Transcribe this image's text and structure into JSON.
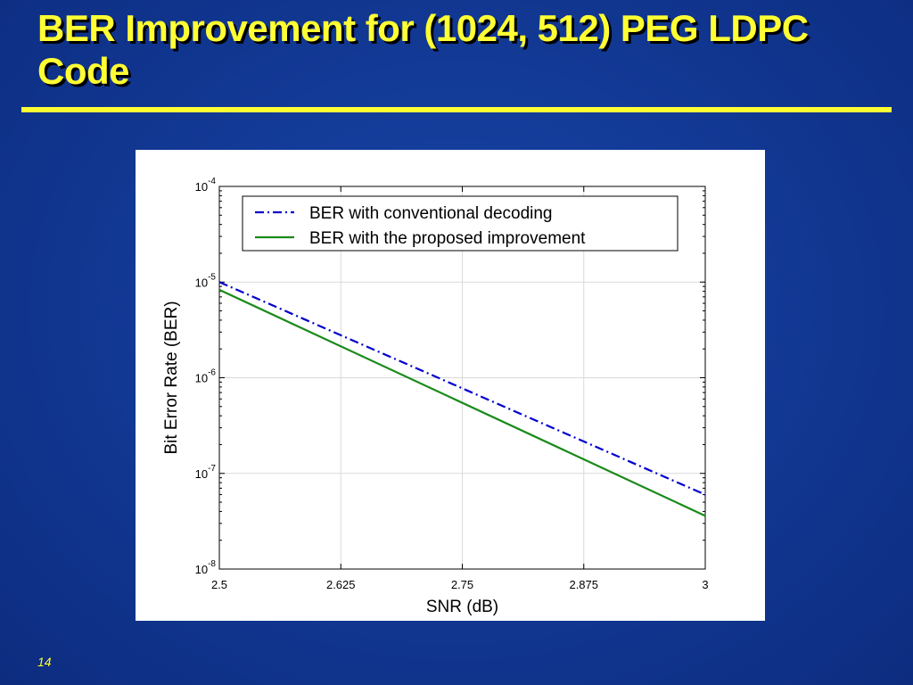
{
  "slide": {
    "title": "BER Improvement for (1024, 512) PEG LDPC Code",
    "number": "14"
  },
  "colors": {
    "background": "#123a96",
    "title": "#ffff33",
    "conventional": "#0000cc",
    "proposed": "#1a8a1a"
  },
  "chart_data": {
    "type": "line",
    "title": "",
    "xlabel": "SNR (dB)",
    "ylabel": "Bit Error Rate (BER)",
    "xlim": [
      2.5,
      3
    ],
    "ylim": [
      1e-08,
      0.0001
    ],
    "yscale": "log",
    "grid": true,
    "legend_position": "top-right",
    "x_ticks": [
      "2.5",
      "2.625",
      "2.75",
      "2.875",
      "3"
    ],
    "y_ticks": [
      {
        "base": "10",
        "exp": "-4"
      },
      {
        "base": "10",
        "exp": "-5"
      },
      {
        "base": "10",
        "exp": "-6"
      },
      {
        "base": "10",
        "exp": "-7"
      },
      {
        "base": "10",
        "exp": "-8"
      }
    ],
    "series": [
      {
        "name": "BER with conventional decoding",
        "style": "dash-dot",
        "color": "#0000cc",
        "x": [
          2.5,
          3
        ],
        "y": [
          1e-05,
          6e-08
        ]
      },
      {
        "name": "BER with the proposed improvement",
        "style": "solid",
        "color": "#1a8a1a",
        "x": [
          2.5,
          3
        ],
        "y": [
          8.3e-06,
          3.6e-08
        ]
      }
    ]
  }
}
